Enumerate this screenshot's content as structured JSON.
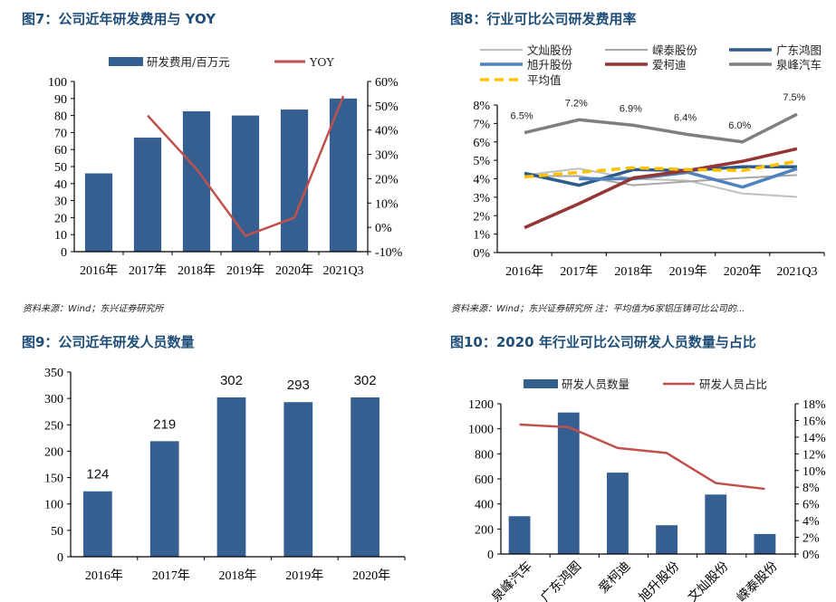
{
  "colors": {
    "title": "#1f4e79",
    "bar": "#355f91",
    "red_line": "#c0504d",
    "axis": "#000000"
  },
  "chart_data": [
    {
      "id": "fig7",
      "type": "bar",
      "title": "图7：公司近年研发费用与 YOY",
      "categories": [
        "2016年",
        "2017年",
        "2018年",
        "2019年",
        "2020年",
        "2021Q3"
      ],
      "series": [
        {
          "name": "研发费用/百万元",
          "type": "bar",
          "axis": "left",
          "values": [
            46,
            67,
            82.5,
            80,
            83.5,
            90
          ]
        },
        {
          "name": "YOY",
          "type": "line",
          "axis": "right",
          "values": [
            null,
            0.46,
            0.24,
            -0.035,
            0.04,
            0.54
          ]
        }
      ],
      "ylim_left": [
        0,
        100
      ],
      "yticks_left": [
        "0",
        "10",
        "20",
        "30",
        "40",
        "50",
        "60",
        "70",
        "80",
        "90",
        "100"
      ],
      "ylim_right": [
        -0.1,
        0.6
      ],
      "yticks_right": [
        "-10%",
        "0%",
        "10%",
        "20%",
        "30%",
        "40%",
        "50%",
        "60%"
      ],
      "legend": "top",
      "grid": false,
      "source": ""
    },
    {
      "id": "fig8",
      "type": "line",
      "title": "图8：行业可比公司研发费用率",
      "categories": [
        "2016年",
        "2017年",
        "2018年",
        "2019年",
        "2020年",
        "2021Q3"
      ],
      "series": [
        {
          "name": "文灿股份",
          "color": "#bfbfbf",
          "dash": false,
          "values": [
            0.042,
            0.0455,
            0.04,
            0.039,
            0.032,
            0.0302
          ]
        },
        {
          "name": "嵘泰股份",
          "color": "#a6a6a6",
          "dash": false,
          "values": [
            0.0415,
            0.0415,
            0.0365,
            0.0385,
            0.0405,
            0.042
          ]
        },
        {
          "name": "广东鸿图",
          "color": "#2e5c8a",
          "dash": false,
          "values": [
            0.043,
            0.0365,
            0.045,
            0.0445,
            0.0465,
            0.0465
          ]
        },
        {
          "name": "旭升股份",
          "color": "#4f81bd",
          "dash": false,
          "values": [
            null,
            0.04,
            0.04,
            0.0435,
            0.0355,
            0.0455
          ]
        },
        {
          "name": "爱柯迪",
          "color": "#943634",
          "dash": false,
          "values": [
            0.0135,
            0.0265,
            0.0405,
            0.0445,
            0.0495,
            0.0563
          ]
        },
        {
          "name": "泉峰汽车",
          "color": "#7f7f7f",
          "dash": false,
          "values": [
            0.065,
            0.072,
            0.069,
            0.064,
            0.06,
            0.075
          ]
        },
        {
          "name": "平均值",
          "color": "#ffc000",
          "dash": true,
          "values": [
            0.041,
            0.0435,
            0.046,
            0.045,
            0.0445,
            0.0495
          ]
        }
      ],
      "data_labels": {
        "series": "泉峰汽车",
        "labels": [
          "6.5%",
          "7.2%",
          "6.9%",
          "6.4%",
          "6.0%",
          "7.5%"
        ]
      },
      "ylim": [
        0,
        0.08
      ],
      "yticks": [
        "0%",
        "1%",
        "2%",
        "3%",
        "4%",
        "5%",
        "6%",
        "7%",
        "8%"
      ],
      "legend": "top",
      "grid": false,
      "source": "资料来源：Wind；东兴证券研究所"
    },
    {
      "id": "fig9",
      "type": "bar",
      "title": "图9：公司近年研发人员数量",
      "categories": [
        "2016年",
        "2017年",
        "2018年",
        "2019年",
        "2020年"
      ],
      "values": [
        124,
        219,
        302,
        293,
        302
      ],
      "data_labels": [
        "124",
        "219",
        "302",
        "293",
        "302"
      ],
      "ylim": [
        0,
        350
      ],
      "yticks": [
        "0",
        "50",
        "100",
        "150",
        "200",
        "250",
        "300",
        "350"
      ],
      "grid": false,
      "source": "资料来源：Wind；东兴证券研究所"
    },
    {
      "id": "fig10",
      "type": "bar",
      "title": "图10：2020 年行业可比公司研发人员数量与占比",
      "categories": [
        "泉峰汽车",
        "广东鸿图",
        "爱柯迪",
        "旭升股份",
        "文灿股份",
        "嵘泰股份"
      ],
      "series": [
        {
          "name": "研发人员数量",
          "type": "bar",
          "axis": "left",
          "values": [
            302,
            1130,
            650,
            230,
            475,
            160
          ]
        },
        {
          "name": "研发人员占比",
          "type": "line",
          "axis": "right",
          "values": [
            0.155,
            0.152,
            0.127,
            0.121,
            0.085,
            0.078
          ]
        }
      ],
      "ylim_left": [
        0,
        1200
      ],
      "yticks_left": [
        "0",
        "200",
        "400",
        "600",
        "800",
        "1000",
        "1200"
      ],
      "ylim_right": [
        0,
        0.18
      ],
      "yticks_right": [
        "0%",
        "2%",
        "4%",
        "6%",
        "8%",
        "10%",
        "12%",
        "14%",
        "16%",
        "18%"
      ],
      "legend": "top",
      "grid": false,
      "source": "资料来源：Wind；东兴证券研究所  注：平均值为6家铝压铸可比公司的..."
    }
  ]
}
